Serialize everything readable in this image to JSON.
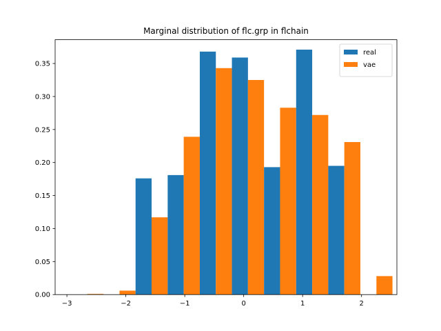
{
  "chart_data": {
    "type": "bar",
    "title": "Marginal distribution of flc.grp in flchain",
    "xlabel": "",
    "ylabel": "",
    "xlim": [
      -3.2,
      2.6
    ],
    "ylim": [
      0,
      0.386
    ],
    "x_ticks": [
      -3,
      -2,
      -1,
      0,
      1,
      2
    ],
    "x_tick_labels": [
      "−3",
      "−2",
      "−1",
      "0",
      "1",
      "2"
    ],
    "y_ticks": [
      0.0,
      0.05,
      0.1,
      0.15,
      0.2,
      0.25,
      0.3,
      0.35
    ],
    "y_tick_labels": [
      "0.00",
      "0.05",
      "0.10",
      "0.15",
      "0.20",
      "0.25",
      "0.30",
      "0.35"
    ],
    "bin_edges": [
      -2.925,
      -2.38,
      -1.835,
      -1.29,
      -0.745,
      -0.2,
      0.345,
      0.89,
      1.435,
      1.98,
      2.525
    ],
    "grid": false,
    "legend_position": "top-right",
    "series": [
      {
        "name": "real",
        "color": "#1f77b4",
        "values": [
          0.0,
          0.0,
          0.176,
          0.181,
          0.368,
          0.359,
          0.193,
          0.371,
          0.195,
          0.0
        ]
      },
      {
        "name": "vae",
        "color": "#ff7f0e",
        "values": [
          0.001,
          0.006,
          0.117,
          0.239,
          0.343,
          0.325,
          0.283,
          0.272,
          0.231,
          0.028
        ]
      }
    ]
  }
}
